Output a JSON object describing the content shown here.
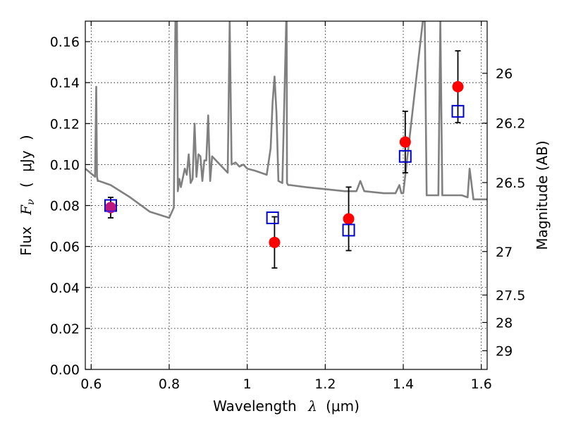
{
  "chart_data": {
    "type": "scatter",
    "xlabel_text": "Wavelength",
    "xlabel_symbol": "λ",
    "xlabel_unit": "(μm)",
    "ylabel_text": "Flux",
    "ylabel_symbol": "F",
    "ylabel_symbol_sub": "ν",
    "ylabel_unit_open": "(",
    "ylabel_unit": "μJy",
    "ylabel_unit_close": ")",
    "y2label": "Magnitude (AB)",
    "xlim": [
      0.585,
      1.615
    ],
    "ylim": [
      0.0,
      0.17
    ],
    "grid": true,
    "xticks": [
      0.6,
      0.8,
      1.0,
      1.2,
      1.4,
      1.6
    ],
    "xtick_labels": [
      "0.6",
      "0.8",
      "1",
      "1.2",
      "1.4",
      "1.6"
    ],
    "yticks": [
      0.0,
      0.02,
      0.04,
      0.06,
      0.08,
      0.1,
      0.12,
      0.14,
      0.16
    ],
    "ytick_labels": [
      "0.00",
      "0.02",
      "0.04",
      "0.06",
      "0.08",
      "0.10",
      "0.12",
      "0.14",
      "0.16"
    ],
    "y2ticks": [
      26,
      26.2,
      26.5,
      27,
      27.5,
      28,
      29
    ],
    "y2tick_labels": [
      "26",
      "26.2",
      "26.5",
      "27",
      "27.5",
      "28",
      "29"
    ],
    "model_spectrum": {
      "color": "#808080",
      "x": [
        0.585,
        0.61,
        0.613,
        0.615,
        0.617,
        0.62,
        0.65,
        0.7,
        0.75,
        0.8,
        0.812,
        0.816,
        0.82,
        0.822,
        0.826,
        0.83,
        0.84,
        0.845,
        0.85,
        0.855,
        0.86,
        0.865,
        0.87,
        0.875,
        0.88,
        0.885,
        0.89,
        0.895,
        0.9,
        0.905,
        0.91,
        0.95,
        0.955,
        0.96,
        0.97,
        0.98,
        0.99,
        1.0,
        1.02,
        1.05,
        1.06,
        1.065,
        1.07,
        1.075,
        1.08,
        1.09,
        1.1,
        1.101,
        1.102,
        1.105,
        1.11,
        1.15,
        1.2,
        1.25,
        1.28,
        1.29,
        1.3,
        1.35,
        1.38,
        1.39,
        1.395,
        1.4,
        1.45,
        1.455,
        1.46,
        1.49,
        1.495,
        1.5,
        1.55,
        1.565,
        1.57,
        1.58,
        1.615
      ],
      "y": [
        0.098,
        0.094,
        0.138,
        0.094,
        0.092,
        0.092,
        0.09,
        0.084,
        0.077,
        0.074,
        0.079,
        0.17,
        0.17,
        0.087,
        0.093,
        0.089,
        0.098,
        0.095,
        0.105,
        0.091,
        0.093,
        0.12,
        0.094,
        0.105,
        0.104,
        0.092,
        0.102,
        0.102,
        0.124,
        0.092,
        0.104,
        0.096,
        0.17,
        0.1,
        0.101,
        0.099,
        0.1,
        0.098,
        0.097,
        0.095,
        0.108,
        0.13,
        0.143,
        0.125,
        0.092,
        0.091,
        0.17,
        0.17,
        0.091,
        0.09,
        0.09,
        0.089,
        0.088,
        0.087,
        0.087,
        0.092,
        0.087,
        0.086,
        0.086,
        0.09,
        0.086,
        0.086,
        0.17,
        0.17,
        0.085,
        0.085,
        0.17,
        0.085,
        0.085,
        0.084,
        0.098,
        0.083,
        0.083
      ]
    },
    "measured": {
      "color": "#ff0000",
      "x": [
        0.65,
        1.07,
        1.26,
        1.405,
        1.54
      ],
      "y": [
        0.079,
        0.062,
        0.0735,
        0.111,
        0.138
      ],
      "yerr": [
        0.005,
        0.0125,
        0.0155,
        0.015,
        0.0175
      ]
    },
    "model_bandflux": {
      "color": "#0000cc",
      "x": [
        0.65,
        1.065,
        1.26,
        1.405,
        1.54
      ],
      "y": [
        0.08,
        0.074,
        0.068,
        0.104,
        0.126
      ]
    }
  }
}
